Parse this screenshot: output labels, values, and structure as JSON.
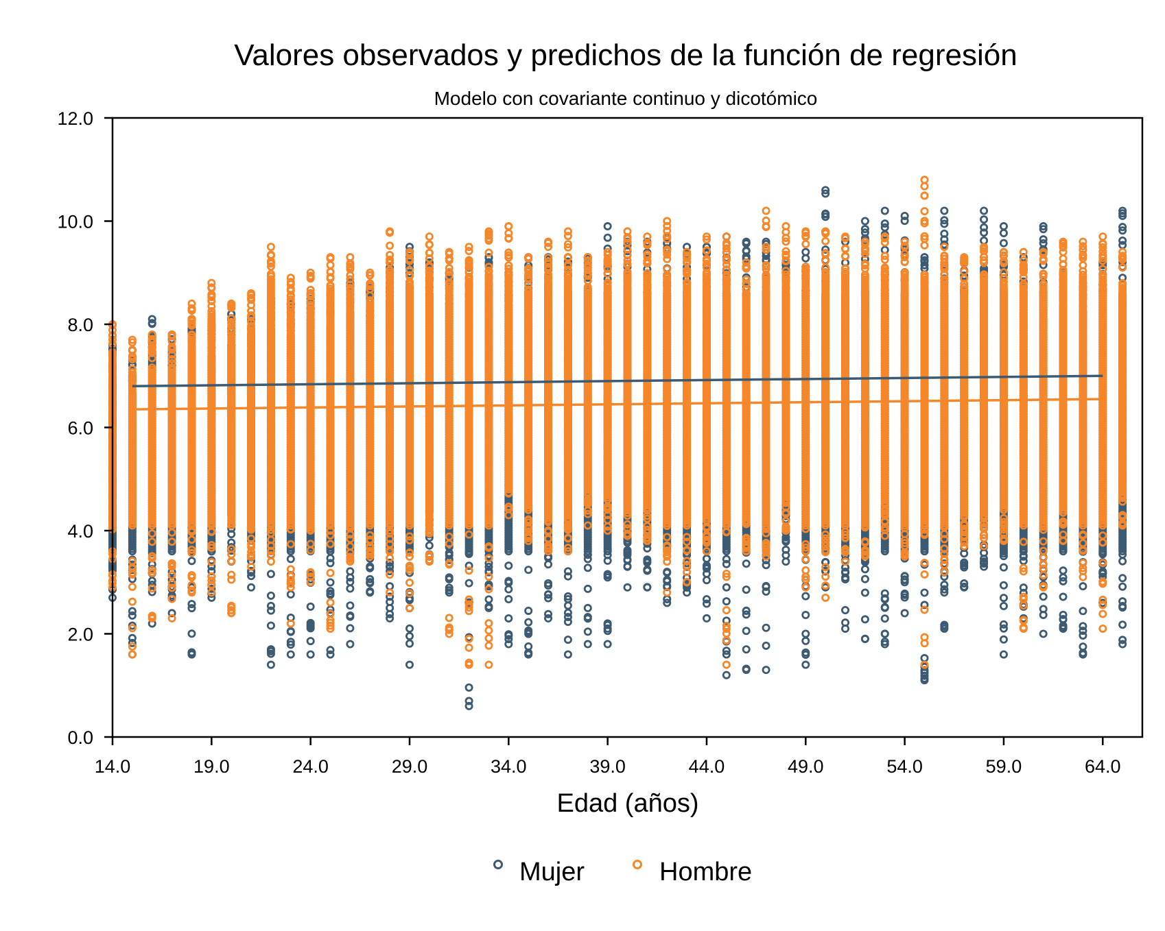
{
  "chart_data": {
    "type": "scatter",
    "title": "Valores observados y predichos de la función de regresión",
    "subtitle": "Modelo con covariante continuo y dicotómico",
    "xlabel": "Edad (años)",
    "ylabel": "",
    "xlim": [
      14,
      66
    ],
    "ylim": [
      0,
      12
    ],
    "x_ticks": [
      "14.0",
      "19.0",
      "24.0",
      "29.0",
      "34.0",
      "39.0",
      "44.0",
      "49.0",
      "54.0",
      "59.0",
      "64.0"
    ],
    "y_ticks": [
      "0.0",
      "2.0",
      "4.0",
      "6.0",
      "8.0",
      "10.0",
      "12.0"
    ],
    "grid": false,
    "legend_position": "bottom",
    "colors": {
      "mujer": "#3d5a73",
      "hombre": "#f5872a"
    },
    "series": [
      {
        "name": "Mujer",
        "kind": "observed",
        "ages": [
          14,
          15,
          16,
          17,
          18,
          19,
          20,
          21,
          22,
          23,
          24,
          25,
          26,
          27,
          28,
          29,
          30,
          31,
          32,
          33,
          34,
          35,
          36,
          37,
          38,
          39,
          40,
          41,
          42,
          43,
          44,
          45,
          46,
          47,
          48,
          49,
          50,
          51,
          52,
          53,
          54,
          55,
          56,
          57,
          58,
          59,
          60,
          61,
          62,
          63,
          64,
          65
        ],
        "min": [
          2.7,
          1.6,
          2.2,
          2.4,
          1.6,
          2.7,
          3.4,
          2.9,
          1.4,
          1.6,
          1.6,
          1.6,
          1.8,
          2.8,
          2.3,
          1.4,
          3.5,
          2.8,
          0.6,
          2.5,
          1.8,
          1.6,
          2.3,
          1.6,
          1.8,
          1.8,
          2.9,
          2.9,
          2.6,
          2.8,
          2.3,
          1.2,
          1.3,
          1.3,
          3.4,
          1.4,
          2.9,
          2.1,
          1.9,
          1.8,
          2.4,
          1.1,
          2.1,
          2.9,
          3.3,
          1.6,
          2.3,
          2.0,
          2.1,
          1.6,
          2.6,
          1.8
        ],
        "max": [
          7.6,
          7.3,
          8.1,
          7.8,
          8.1,
          8.0,
          8.2,
          8.1,
          8.5,
          8.4,
          8.6,
          8.6,
          8.8,
          8.7,
          9.1,
          9.5,
          9.2,
          9.0,
          9.1,
          9.3,
          9.0,
          9.3,
          9.3,
          9.3,
          9.3,
          9.9,
          9.6,
          9.6,
          9.7,
          9.5,
          9.5,
          9.7,
          9.6,
          9.6,
          9.2,
          9.4,
          10.6,
          9.6,
          10.0,
          10.2,
          10.1,
          9.3,
          10.2,
          9.2,
          10.2,
          9.9,
          9.3,
          9.9,
          9.0,
          8.8,
          9.2,
          10.2
        ]
      },
      {
        "name": "Hombre",
        "kind": "observed",
        "ages": [
          14,
          15,
          16,
          17,
          18,
          19,
          20,
          21,
          22,
          23,
          24,
          25,
          26,
          27,
          28,
          29,
          30,
          31,
          32,
          33,
          34,
          35,
          36,
          37,
          38,
          39,
          40,
          41,
          42,
          43,
          44,
          45,
          46,
          47,
          48,
          49,
          50,
          51,
          52,
          53,
          54,
          55,
          56,
          57,
          58,
          59,
          60,
          61,
          62,
          63,
          64,
          65
        ],
        "min": [
          2.9,
          1.6,
          2.3,
          2.3,
          2.8,
          2.8,
          2.4,
          3.3,
          3.4,
          2.2,
          3.0,
          2.1,
          3.4,
          3.5,
          2.8,
          2.5,
          3.4,
          2.0,
          1.4,
          1.4,
          4.3,
          3.8,
          3.6,
          3.6,
          4.1,
          4.0,
          3.9,
          3.8,
          2.8,
          3.0,
          3.6,
          1.4,
          3.6,
          3.5,
          4.0,
          2.9,
          2.7,
          3.4,
          3.5,
          3.9,
          3.5,
          1.4,
          3.2,
          3.7,
          3.7,
          3.8,
          2.1,
          2.9,
          3.8,
          3.1,
          2.1,
          4.1
        ],
        "max": [
          8.0,
          7.7,
          7.8,
          7.8,
          8.4,
          8.8,
          8.4,
          8.6,
          9.5,
          8.9,
          9.0,
          9.3,
          9.3,
          9.0,
          9.8,
          9.4,
          9.7,
          9.4,
          9.5,
          9.8,
          9.9,
          9.3,
          9.6,
          9.8,
          9.3,
          9.4,
          9.8,
          9.7,
          10.0,
          9.4,
          9.7,
          9.7,
          9.2,
          10.2,
          9.9,
          9.8,
          9.8,
          9.7,
          9.6,
          9.7,
          9.6,
          10.8,
          9.5,
          9.3,
          9.5,
          9.4,
          9.4,
          9.4,
          9.6,
          9.6,
          9.7,
          9.4
        ]
      },
      {
        "name": "Mujer",
        "kind": "fitted",
        "x": [
          15,
          64
        ],
        "y": [
          6.8,
          7.0
        ]
      },
      {
        "name": "Hombre",
        "kind": "fitted",
        "x": [
          15,
          64
        ],
        "y": [
          6.35,
          6.55
        ]
      }
    ]
  },
  "legend": {
    "items": [
      {
        "label": "Mujer",
        "color": "#3d5a73"
      },
      {
        "label": "Hombre",
        "color": "#f5872a"
      }
    ]
  }
}
